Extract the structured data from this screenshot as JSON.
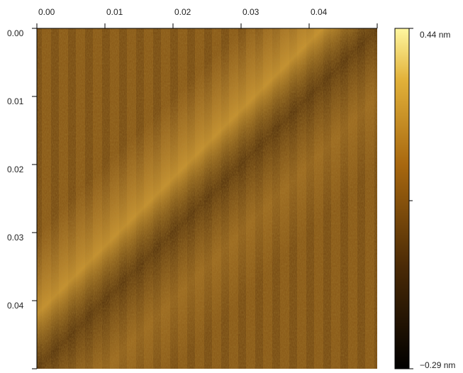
{
  "chart_data": {
    "type": "image",
    "xlim": [
      0,
      0.05
    ],
    "xticks": [
      {
        "value": 0,
        "label": "0.00"
      },
      0.01,
      0.02,
      0.03,
      0.04
    ],
    "ylim": [
      0,
      0.05
    ],
    "yticks": [
      {
        "value": 0,
        "label": "0.00"
      },
      0.01,
      0.02,
      0.03,
      0.04
    ],
    "zlim": [
      -0.29,
      0.44
    ],
    "zticks": [
      {
        "value": 0.44,
        "label": "0.44 nm"
      },
      {
        "value": -0.29,
        "label": "−0.29 nm"
      }
    ]
  }
}
